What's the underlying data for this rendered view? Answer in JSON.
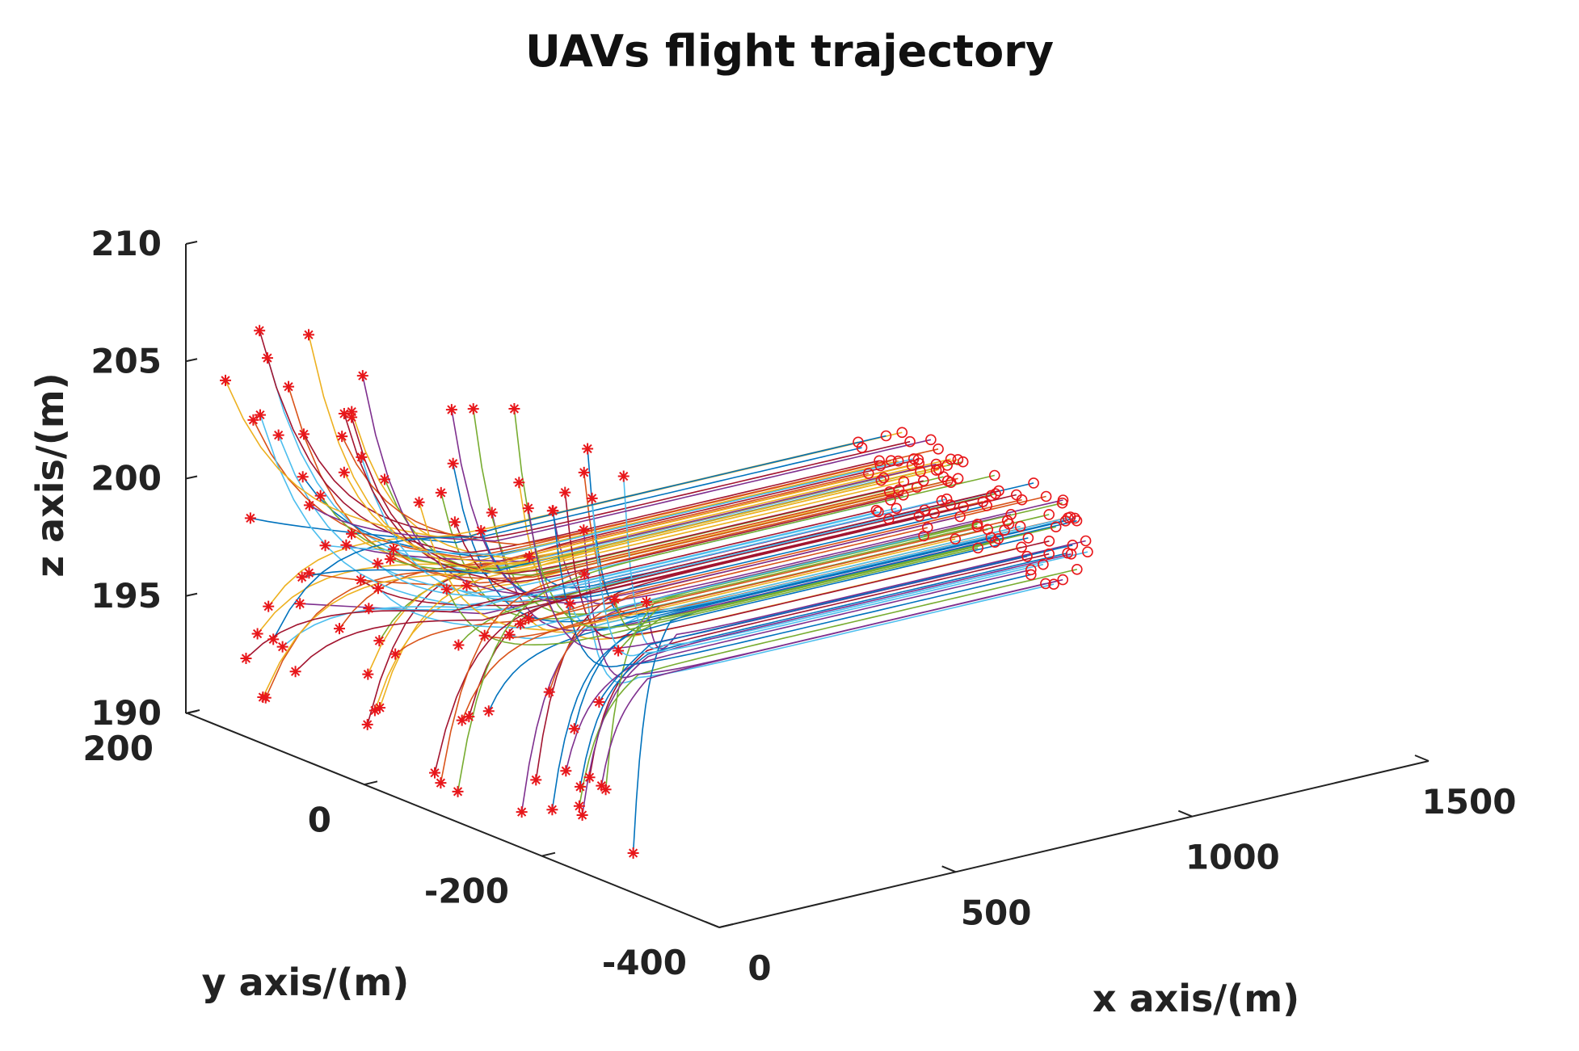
{
  "chart_data": {
    "type": "line",
    "projection": "3d",
    "title": "UAVs flight trajectory",
    "xlabel": "x axis/(m)",
    "ylabel": "y axis/(m)",
    "zlabel": "z axis/(m)",
    "xlim": [
      0,
      1500
    ],
    "ylim": [
      -400,
      200
    ],
    "zlim": [
      190,
      210
    ],
    "xticks": [
      0,
      500,
      1000,
      1500
    ],
    "yticks": [
      -400,
      -200,
      0,
      200
    ],
    "zticks": [
      190,
      195,
      200,
      205,
      210
    ],
    "xtick_labels": [
      "0",
      "500",
      "1000",
      "1500"
    ],
    "ytick_labels": [
      "-400",
      "-200",
      "0",
      "200"
    ],
    "ztick_labels": [
      "190",
      "195",
      "200",
      "205",
      "210"
    ],
    "grid": false,
    "legend": "none",
    "uav_count": 100,
    "start_x_range": [
      -40,
      40
    ],
    "start_z_range": [
      191,
      209
    ],
    "cruise_z_range": [
      196.5,
      200
    ],
    "end_x_range": [
      1050,
      1150
    ],
    "start_marker": "*",
    "end_marker": "o",
    "marker_color": "#e8161a",
    "line_colors": [
      "#0072BD",
      "#D95319",
      "#EDB120",
      "#7E2F8E",
      "#77AC30",
      "#4DBEEE",
      "#A2142F"
    ]
  }
}
